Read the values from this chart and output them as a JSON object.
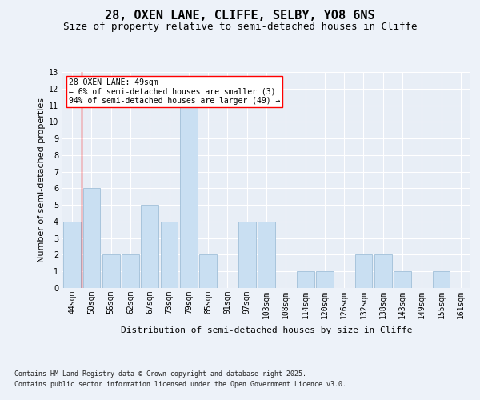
{
  "title": "28, OXEN LANE, CLIFFE, SELBY, YO8 6NS",
  "subtitle": "Size of property relative to semi-detached houses in Cliffe",
  "xlabel": "Distribution of semi-detached houses by size in Cliffe",
  "ylabel": "Number of semi-detached properties",
  "categories": [
    "44sqm",
    "50sqm",
    "56sqm",
    "62sqm",
    "67sqm",
    "73sqm",
    "79sqm",
    "85sqm",
    "91sqm",
    "97sqm",
    "103sqm",
    "108sqm",
    "114sqm",
    "120sqm",
    "126sqm",
    "132sqm",
    "138sqm",
    "143sqm",
    "149sqm",
    "155sqm",
    "161sqm"
  ],
  "values": [
    4,
    6,
    2,
    2,
    5,
    4,
    11,
    2,
    0,
    4,
    4,
    0,
    1,
    1,
    0,
    2,
    2,
    1,
    0,
    1,
    0
  ],
  "bar_color": "#c9dff2",
  "bar_edgecolor": "#a0bfd8",
  "annotation_title": "28 OXEN LANE: 49sqm",
  "annotation_line1": "← 6% of semi-detached houses are smaller (3)",
  "annotation_line2": "94% of semi-detached houses are larger (49) →",
  "ylim": [
    0,
    13
  ],
  "yticks": [
    0,
    1,
    2,
    3,
    4,
    5,
    6,
    7,
    8,
    9,
    10,
    11,
    12,
    13
  ],
  "footer_line1": "Contains HM Land Registry data © Crown copyright and database right 2025.",
  "footer_line2": "Contains public sector information licensed under the Open Government Licence v3.0.",
  "bg_color": "#edf2f9",
  "plot_bg_color": "#e8eef6",
  "grid_color": "#ffffff",
  "title_fontsize": 11,
  "subtitle_fontsize": 9,
  "axis_label_fontsize": 8,
  "tick_fontsize": 7,
  "footer_fontsize": 6,
  "annotation_fontsize": 7
}
